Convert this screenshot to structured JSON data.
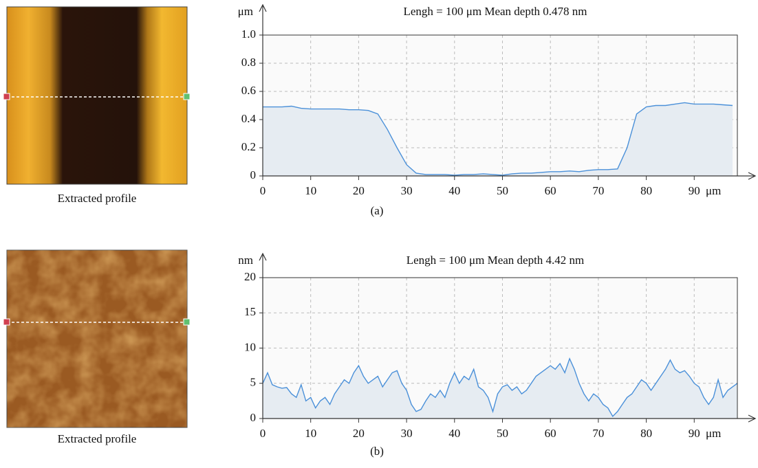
{
  "chart_data": [
    {
      "type": "area",
      "title": "Lengh = 100 μm Mean depth 0.478 nm",
      "ylabel": "μm",
      "xlabel": "μm",
      "caption": "(a)",
      "image_caption": "Extracted profile",
      "color": "#4a90d9",
      "grid": true,
      "xlim": [
        0,
        99
      ],
      "xticks": [
        0,
        10,
        20,
        30,
        40,
        50,
        60,
        70,
        80,
        90
      ],
      "ylim": [
        0,
        1
      ],
      "yticks": [
        0,
        0.2,
        0.4,
        0.6,
        0.8,
        {
          "value": 1,
          "label": "1.0"
        }
      ],
      "x": [
        0,
        2,
        4,
        6,
        8,
        10,
        12,
        14,
        16,
        18,
        20,
        22,
        24,
        26,
        28,
        30,
        32,
        34,
        36,
        38,
        40,
        42,
        44,
        46,
        48,
        50,
        52,
        54,
        56,
        58,
        60,
        62,
        64,
        66,
        68,
        70,
        72,
        74,
        76,
        78,
        80,
        82,
        84,
        86,
        88,
        90,
        92,
        94,
        96,
        98
      ],
      "values": [
        0.49,
        0.49,
        0.49,
        0.495,
        0.48,
        0.475,
        0.475,
        0.475,
        0.475,
        0.47,
        0.47,
        0.465,
        0.44,
        0.33,
        0.2,
        0.08,
        0.02,
        0.01,
        0.01,
        0.01,
        0.005,
        0.01,
        0.01,
        0.015,
        0.01,
        0.005,
        0.015,
        0.02,
        0.02,
        0.025,
        0.03,
        0.03,
        0.035,
        0.03,
        0.04,
        0.045,
        0.045,
        0.05,
        0.2,
        0.44,
        0.49,
        0.5,
        0.5,
        0.51,
        0.52,
        0.51,
        0.51,
        0.51,
        0.505,
        0.5
      ]
    },
    {
      "type": "area",
      "title": "Lengh = 100 μm Mean depth 4.42 nm",
      "ylabel": "nm",
      "xlabel": "μm",
      "caption": "(b)",
      "image_caption": "Extracted profile",
      "color": "#4a90d9",
      "grid": true,
      "xlim": [
        0,
        99
      ],
      "xticks": [
        0,
        10,
        20,
        30,
        40,
        50,
        60,
        70,
        80,
        90
      ],
      "ylim": [
        0,
        20
      ],
      "yticks": [
        0,
        5,
        10,
        15,
        20
      ],
      "x": [
        0,
        1,
        2,
        3,
        4,
        5,
        6,
        7,
        8,
        9,
        10,
        11,
        12,
        13,
        14,
        15,
        16,
        17,
        18,
        19,
        20,
        21,
        22,
        23,
        24,
        25,
        26,
        27,
        28,
        29,
        30,
        31,
        32,
        33,
        34,
        35,
        36,
        37,
        38,
        39,
        40,
        41,
        42,
        43,
        44,
        45,
        46,
        47,
        48,
        49,
        50,
        51,
        52,
        53,
        54,
        55,
        56,
        57,
        58,
        59,
        60,
        61,
        62,
        63,
        64,
        65,
        66,
        67,
        68,
        69,
        70,
        71,
        72,
        73,
        74,
        75,
        76,
        77,
        78,
        79,
        80,
        81,
        82,
        83,
        84,
        85,
        86,
        87,
        88,
        89,
        90,
        91,
        92,
        93,
        94,
        95,
        96,
        97,
        98,
        99
      ],
      "values": [
        5,
        6.5,
        4.8,
        4.5,
        4.3,
        4.4,
        3.5,
        3,
        4.8,
        2.5,
        3,
        1.5,
        2.5,
        3,
        2,
        3.5,
        4.5,
        5.5,
        5,
        6.5,
        7.5,
        6,
        5,
        5.5,
        6,
        4.5,
        5.5,
        6.5,
        6.8,
        5,
        4,
        2,
        1,
        1.3,
        2.5,
        3.5,
        3,
        4,
        3,
        5,
        6.5,
        5,
        6,
        5.5,
        7,
        4.5,
        4,
        3,
        1,
        3.5,
        4.5,
        4.8,
        4,
        4.5,
        3.5,
        4,
        5,
        6,
        6.5,
        7,
        7.5,
        7,
        7.8,
        6.5,
        8.5,
        7,
        5,
        3.5,
        2.5,
        3.5,
        3,
        2,
        1.5,
        0.3,
        1,
        2,
        3,
        3.5,
        4.5,
        5.5,
        5,
        4,
        5,
        6,
        7,
        8.3,
        7,
        6.5,
        6.8,
        6,
        5,
        4.5,
        3,
        2,
        3,
        5.5,
        3,
        4,
        4.5,
        5
      ]
    }
  ]
}
